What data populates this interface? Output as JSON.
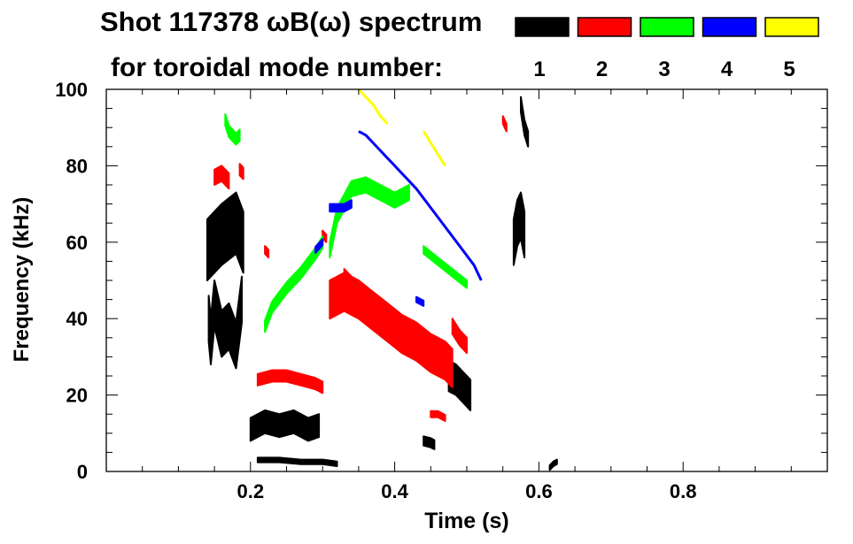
{
  "chart_data": {
    "type": "scatter",
    "plot_kind": "spectrogram",
    "title": "Shot 117378 ωB(ω) spectrum",
    "subtitle": "for toroidal mode number:",
    "xlabel": "Time (s)",
    "ylabel": "Frequency (kHz)",
    "xlim": [
      0.0,
      1.0
    ],
    "ylim": [
      0,
      100
    ],
    "x_ticks": [
      {
        "value": 0.2,
        "label": "0.2"
      },
      {
        "value": 0.4,
        "label": "0.4"
      },
      {
        "value": 0.6,
        "label": "0.6"
      },
      {
        "value": 0.8,
        "label": "0.8"
      }
    ],
    "y_ticks": [
      {
        "value": 0,
        "label": "0"
      },
      {
        "value": 20,
        "label": "20"
      },
      {
        "value": 40,
        "label": "40"
      },
      {
        "value": 60,
        "label": "60"
      },
      {
        "value": 80,
        "label": "80"
      },
      {
        "value": 100,
        "label": "100"
      }
    ],
    "legend": [
      {
        "mode": "1",
        "color": "#000000"
      },
      {
        "mode": "2",
        "color": "#ff0000"
      },
      {
        "mode": "3",
        "color": "#00ff00"
      },
      {
        "mode": "4",
        "color": "#0000ff"
      },
      {
        "mode": "5",
        "color": "#ffff00"
      }
    ],
    "series": [
      {
        "mode": "1",
        "name": "n=1",
        "color": "#000000",
        "segments": [
          {
            "x": [
              0.14,
              0.16,
              0.18,
              0.19
            ],
            "y": [
              58,
              62,
              65,
              60
            ],
            "kind": "band",
            "halfwidth": 8
          },
          {
            "x": [
              0.142,
              0.145,
              0.15,
              0.16,
              0.17,
              0.18,
              0.188
            ],
            "y": [
              40,
              34,
              44,
              36,
              38,
              33,
              45
            ],
            "kind": "band",
            "halfwidth": 6
          },
          {
            "x": [
              0.2,
              0.22,
              0.24,
              0.26,
              0.28,
              0.295
            ],
            "y": [
              11,
              13,
              12,
              13,
              11,
              12
            ],
            "kind": "band",
            "halfwidth": 3
          },
          {
            "x": [
              0.21,
              0.24,
              0.27,
              0.3,
              0.32
            ],
            "y": [
              3,
              3,
              2.5,
              2.5,
              2
            ],
            "kind": "band",
            "halfwidth": 0.6
          },
          {
            "x": [
              0.44,
              0.45,
              0.455
            ],
            "y": [
              8,
              7.5,
              7
            ],
            "kind": "band",
            "halfwidth": 1.2
          },
          {
            "x": [
              0.475,
              0.485,
              0.495,
              0.505
            ],
            "y": [
              25,
              24,
              22,
              20
            ],
            "kind": "band",
            "halfwidth": 4
          },
          {
            "x": [
              0.565,
              0.57,
              0.575,
              0.58
            ],
            "y": [
              60,
              65,
              67,
              62
            ],
            "kind": "band",
            "halfwidth": 6
          },
          {
            "x": [
              0.575,
              0.58,
              0.585
            ],
            "y": [
              96,
              90,
              87
            ],
            "kind": "band",
            "halfwidth": 2
          },
          {
            "x": [
              0.615,
              0.62,
              0.625
            ],
            "y": [
              1,
              2,
              2.5
            ],
            "kind": "band",
            "halfwidth": 0.6
          }
        ]
      },
      {
        "mode": "2",
        "name": "n=2",
        "color": "#ff0000",
        "segments": [
          {
            "x": [
              0.15,
              0.16,
              0.17
            ],
            "y": [
              77,
              78,
              76
            ],
            "kind": "band",
            "halfwidth": 2
          },
          {
            "x": [
              0.185,
              0.19
            ],
            "y": [
              79,
              78
            ],
            "kind": "band",
            "halfwidth": 1.5
          },
          {
            "x": [
              0.21,
              0.23,
              0.25,
              0.27,
              0.29,
              0.3
            ],
            "y": [
              24,
              25,
              25,
              24,
              23,
              22
            ],
            "kind": "band",
            "halfwidth": 1.5
          },
          {
            "x": [
              0.31,
              0.33,
              0.35,
              0.37,
              0.39,
              0.41,
              0.43,
              0.45,
              0.47,
              0.48
            ],
            "y": [
              45,
              47,
              45,
              42,
              39,
              36,
              34,
              31,
              29,
              27
            ],
            "kind": "band",
            "halfwidth": 5
          },
          {
            "x": [
              0.33,
              0.35,
              0.37,
              0.39
            ],
            "y": [
              50,
              46,
              42,
              40
            ],
            "kind": "band",
            "halfwidth": 3
          },
          {
            "x": [
              0.45,
              0.46,
              0.47
            ],
            "y": [
              15,
              15,
              14
            ],
            "kind": "band",
            "halfwidth": 0.8
          },
          {
            "x": [
              0.48,
              0.49,
              0.5
            ],
            "y": [
              38,
              35,
              33
            ],
            "kind": "band",
            "halfwidth": 2
          },
          {
            "x": [
              0.22,
              0.225
            ],
            "y": [
              58,
              57
            ],
            "kind": "band",
            "halfwidth": 1
          },
          {
            "x": [
              0.3,
              0.305
            ],
            "y": [
              62,
              61
            ],
            "kind": "band",
            "halfwidth": 1
          },
          {
            "x": [
              0.55,
              0.555
            ],
            "y": [
              92,
              90
            ],
            "kind": "band",
            "halfwidth": 1
          }
        ]
      },
      {
        "mode": "3",
        "name": "n=3",
        "color": "#00ff00",
        "segments": [
          {
            "x": [
              0.165,
              0.17,
              0.18,
              0.185
            ],
            "y": [
              92,
              89,
              87,
              88
            ],
            "kind": "band",
            "halfwidth": 1.5
          },
          {
            "x": [
              0.22,
              0.23,
              0.25,
              0.27,
              0.29,
              0.3
            ],
            "y": [
              38,
              43,
              48,
              52,
              57,
              60
            ],
            "kind": "band",
            "halfwidth": 1.5
          },
          {
            "x": [
              0.31,
              0.32,
              0.34,
              0.36,
              0.38,
              0.4,
              0.42
            ],
            "y": [
              58,
              67,
              74,
              75,
              73,
              71,
              73
            ],
            "kind": "band",
            "halfwidth": 2
          },
          {
            "x": [
              0.44,
              0.46,
              0.48,
              0.5
            ],
            "y": [
              58,
              55,
              52,
              49
            ],
            "kind": "band",
            "halfwidth": 1
          }
        ]
      },
      {
        "mode": "4",
        "name": "n=4",
        "color": "#0000ff",
        "segments": [
          {
            "x": [
              0.29,
              0.295,
              0.3
            ],
            "y": [
              58,
              59,
              60
            ],
            "kind": "band",
            "halfwidth": 0.8
          },
          {
            "x": [
              0.31,
              0.33,
              0.34
            ],
            "y": [
              69,
              69,
              70
            ],
            "kind": "band",
            "halfwidth": 1
          },
          {
            "x": [
              0.35,
              0.36,
              0.37,
              0.38,
              0.39,
              0.4,
              0.41,
              0.43,
              0.45,
              0.47,
              0.49,
              0.51,
              0.52
            ],
            "y": [
              89,
              88,
              86,
              84,
              82,
              80,
              78,
              74,
              69,
              64,
              59,
              54,
              50
            ],
            "kind": "line",
            "halfwidth": 0.8
          },
          {
            "x": [
              0.43,
              0.44
            ],
            "y": [
              45,
              44
            ],
            "kind": "band",
            "halfwidth": 0.7
          }
        ]
      },
      {
        "mode": "5",
        "name": "n=5",
        "color": "#ffff00",
        "segments": [
          {
            "x": [
              0.35,
              0.36,
              0.37,
              0.38,
              0.39
            ],
            "y": [
              100,
              98,
              96,
              93,
              91
            ],
            "kind": "line",
            "halfwidth": 0.8
          },
          {
            "x": [
              0.44,
              0.45,
              0.46,
              0.47
            ],
            "y": [
              89,
              86,
              83,
              80
            ],
            "kind": "line",
            "halfwidth": 1
          }
        ]
      }
    ]
  }
}
